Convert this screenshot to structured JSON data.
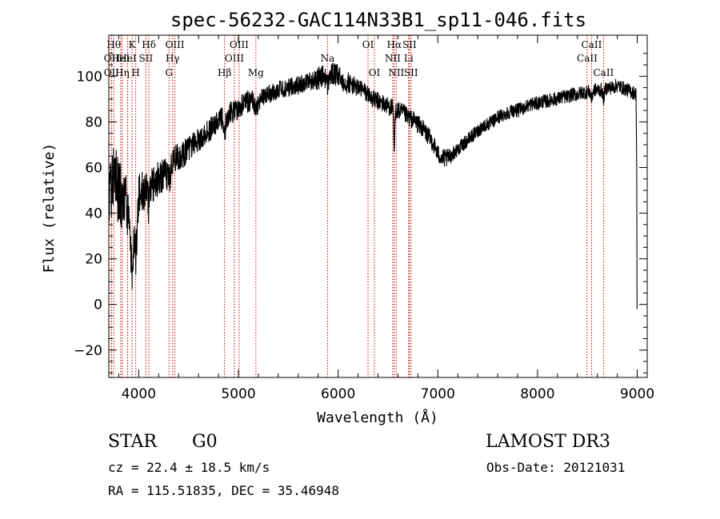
{
  "chart_data": {
    "type": "line",
    "title": "spec-56232-GAC114N33B1_sp11-046.fits",
    "xlabel": "Wavelength (Å)",
    "ylabel": "Flux (relative)",
    "xlim": [
      3700,
      9100
    ],
    "ylim": [
      -32,
      118
    ],
    "xticks": [
      4000,
      5000,
      6000,
      7000,
      8000,
      9000
    ],
    "yticks": [
      -20,
      0,
      20,
      40,
      60,
      80,
      100
    ],
    "line_color": "#000000",
    "marker_color": "#cc0000",
    "spectrum": {
      "x": [
        3700,
        3750,
        3800,
        3850,
        3900,
        3950,
        4000,
        4050,
        4100,
        4150,
        4200,
        4250,
        4300,
        4350,
        4400,
        4450,
        4500,
        4550,
        4600,
        4650,
        4700,
        4750,
        4800,
        4850,
        4900,
        4950,
        5000,
        5050,
        5100,
        5150,
        5200,
        5250,
        5300,
        5350,
        5400,
        5450,
        5500,
        5550,
        5600,
        5650,
        5700,
        5750,
        5800,
        5850,
        5900,
        5950,
        6000,
        6050,
        6100,
        6150,
        6200,
        6250,
        6300,
        6350,
        6400,
        6450,
        6500,
        6550,
        6600,
        6650,
        6700,
        6750,
        6800,
        6850,
        6900,
        6950,
        7000,
        7050,
        7100,
        7150,
        7200,
        7250,
        7300,
        7350,
        7400,
        7450,
        7500,
        7550,
        7600,
        7650,
        7700,
        7750,
        7800,
        7850,
        7900,
        7950,
        8000,
        8050,
        8100,
        8150,
        8200,
        8250,
        8300,
        8350,
        8400,
        8450,
        8500,
        8550,
        8600,
        8650,
        8700,
        8750,
        8800,
        8850,
        8900,
        8950,
        9000
      ],
      "y": [
        45,
        58,
        50,
        45,
        42,
        44,
        48,
        50,
        52,
        53,
        55,
        57,
        60,
        63,
        65,
        66,
        68,
        71,
        72,
        74,
        76,
        78,
        80,
        82,
        83,
        85,
        86,
        88,
        89,
        90,
        89,
        91,
        92,
        93,
        94,
        94,
        95,
        96,
        96,
        97,
        98,
        98,
        99,
        100,
        100,
        101,
        100,
        98,
        97,
        96,
        95,
        94,
        92,
        90,
        89,
        88,
        87,
        86,
        85,
        84,
        82,
        81,
        79,
        77,
        74,
        71,
        66,
        64,
        64,
        66,
        68,
        70,
        72,
        74,
        76,
        78,
        79,
        80,
        82,
        83,
        84,
        85,
        85,
        86,
        87,
        88,
        88,
        89,
        89,
        90,
        90,
        91,
        91,
        92,
        92,
        93,
        93,
        94,
        94,
        94,
        95,
        95,
        96,
        95,
        94,
        93,
        92
      ],
      "noise_amplitude": [
        12,
        16,
        16,
        14,
        12,
        11,
        10,
        9,
        9,
        8,
        8,
        7,
        7,
        7,
        6,
        6,
        6,
        5,
        5,
        5,
        5,
        5,
        5,
        5,
        5,
        5,
        5,
        5,
        5,
        4,
        4,
        4,
        4,
        4,
        4,
        4,
        4,
        4,
        4,
        4,
        4,
        4,
        5,
        5,
        5,
        5,
        5,
        5,
        5,
        4,
        4,
        4,
        4,
        4,
        4,
        4,
        4,
        4,
        4,
        4,
        4,
        4,
        4,
        4,
        4,
        4,
        4,
        4,
        4,
        3,
        3,
        3,
        3,
        3,
        3,
        3,
        3,
        3,
        3,
        3,
        3,
        3,
        3,
        3,
        3,
        3,
        3,
        3,
        3,
        3,
        3,
        3,
        3,
        3,
        3,
        3,
        3,
        3,
        3,
        3,
        3,
        3,
        3,
        3,
        3,
        3,
        3
      ]
    },
    "lines": [
      {
        "wl": 3750,
        "label": "Hθ",
        "row": 1
      },
      {
        "wl": 3727,
        "label": "OII",
        "row": 2
      },
      {
        "wl": 3727,
        "label": "OII",
        "row": 3
      },
      {
        "wl": 3820,
        "label": "HeI",
        "row": 2
      },
      {
        "wl": 3835,
        "label": "Hη",
        "row": 3
      },
      {
        "wl": 3889,
        "label": "HeI",
        "row": 2
      },
      {
        "wl": 3934,
        "label": "K",
        "row": 1
      },
      {
        "wl": 3970,
        "label": "H",
        "row": 3
      },
      {
        "wl": 4072,
        "label": "SII",
        "row": 2
      },
      {
        "wl": 4102,
        "label": "Hδ",
        "row": 1
      },
      {
        "wl": 4304,
        "label": "G",
        "row": 3
      },
      {
        "wl": 4340,
        "label": "Hγ",
        "row": 2
      },
      {
        "wl": 4363,
        "label": "OIII",
        "row": 1
      },
      {
        "wl": 4861,
        "label": "Hβ",
        "row": 3
      },
      {
        "wl": 4959,
        "label": "OIII",
        "row": 2
      },
      {
        "wl": 5007,
        "label": "OIII",
        "row": 1
      },
      {
        "wl": 5175,
        "label": "Mg",
        "row": 3
      },
      {
        "wl": 5894,
        "label": "Na",
        "row": 2
      },
      {
        "wl": 6300,
        "label": "OI",
        "row": 1
      },
      {
        "wl": 6364,
        "label": "OI",
        "row": 3
      },
      {
        "wl": 6548,
        "label": "NII",
        "row": 2
      },
      {
        "wl": 6563,
        "label": "Hα",
        "row": 1
      },
      {
        "wl": 6583,
        "label": "NII",
        "row": 3
      },
      {
        "wl": 6707,
        "label": "Li",
        "row": 2
      },
      {
        "wl": 6716,
        "label": "SII",
        "row": 1
      },
      {
        "wl": 6731,
        "label": "SII",
        "row": 3
      },
      {
        "wl": 8498,
        "label": "CaII",
        "row": 2
      },
      {
        "wl": 8542,
        "label": "CaII",
        "row": 1
      },
      {
        "wl": 8662,
        "label": "CaII",
        "row": 3
      }
    ]
  },
  "info": {
    "class": "STAR",
    "subclass": "G0",
    "survey": "LAMOST DR3",
    "cz": "cz = 22.4 ± 18.5 km/s",
    "obs_date": "Obs-Date: 20121031",
    "coords": "RA = 115.51835, DEC =  35.46948"
  }
}
